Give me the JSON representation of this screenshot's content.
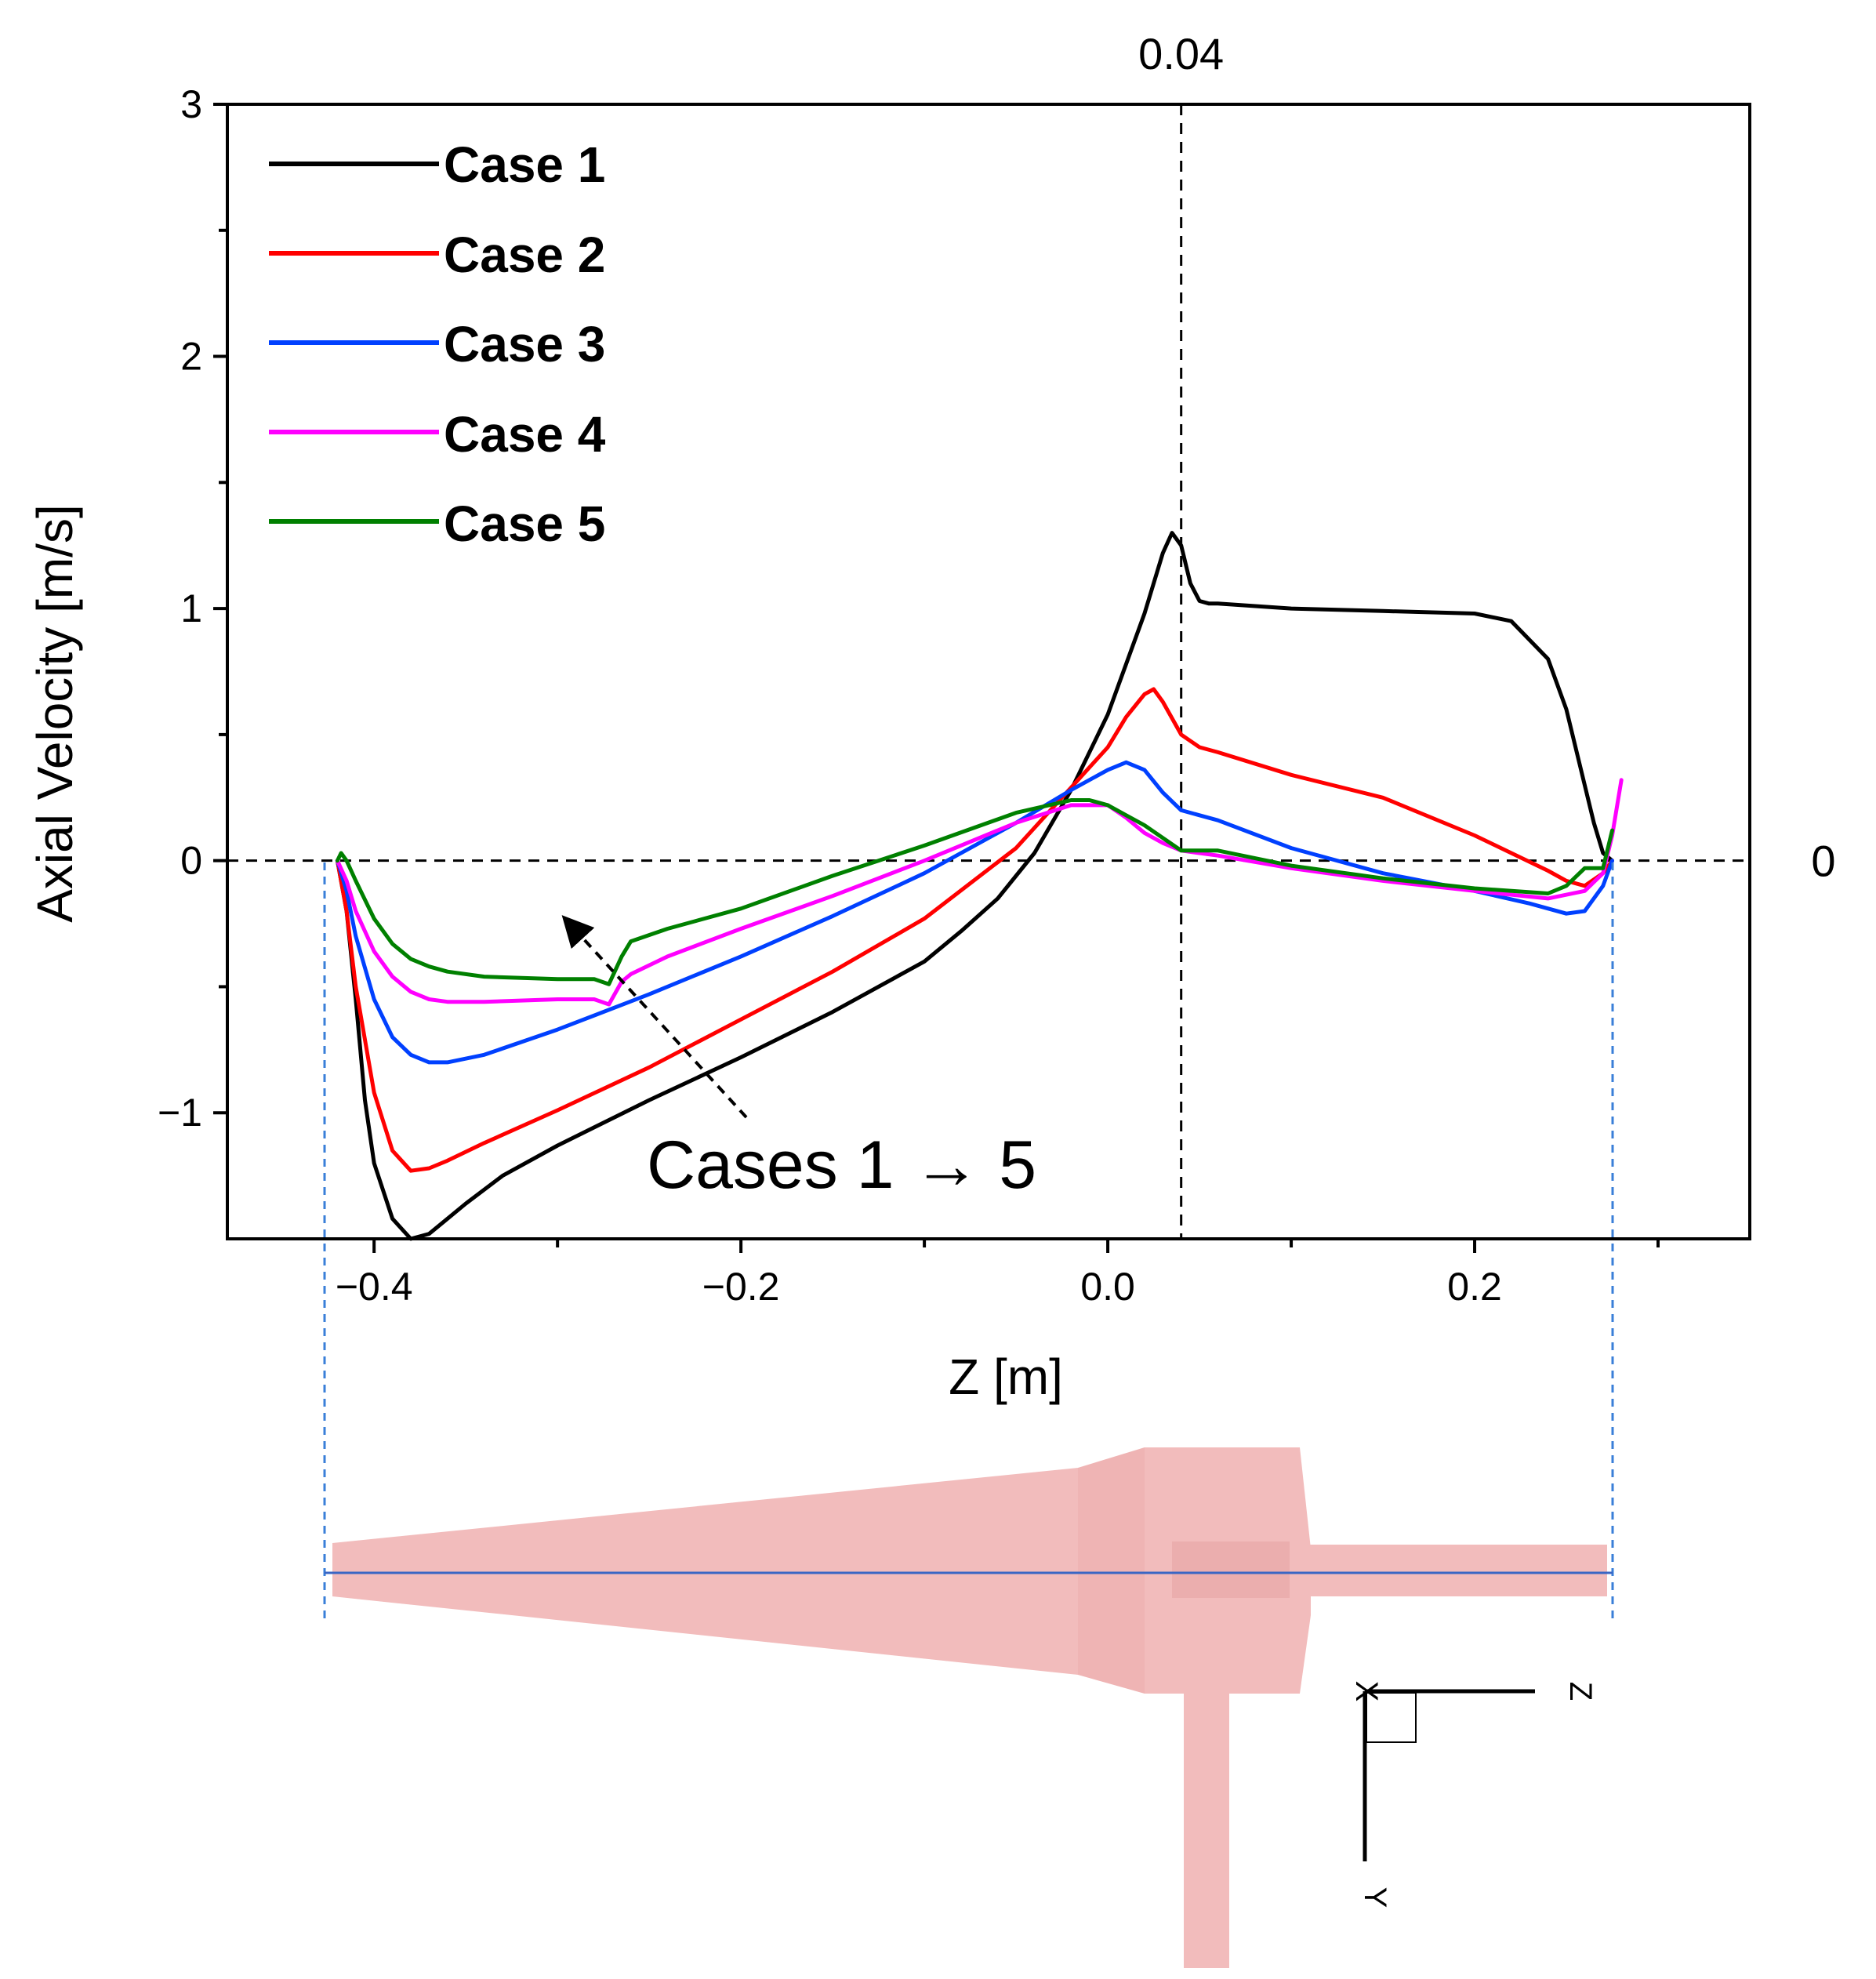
{
  "chart_data": {
    "type": "line",
    "xlabel": "Z [m]",
    "ylabel": "Axial Velocity [m/s]",
    "xlim": [
      -0.48,
      0.35
    ],
    "ylim": [
      -1.5,
      3
    ],
    "x_ticks": [
      -0.4,
      -0.2,
      0.0,
      0.2
    ],
    "x_tick_labels": [
      "−0.4",
      "−0.2",
      "0.0",
      "0.2"
    ],
    "y_ticks": [
      -1,
      0,
      1,
      2,
      3
    ],
    "y_tick_labels": [
      "−1",
      "0",
      "1",
      "2",
      "3"
    ],
    "reference_lines": {
      "vertical_x": 0.04,
      "vertical_label": "0.04",
      "horizontal_y": 0,
      "horizontal_label": "0"
    },
    "legend_position": "top-left",
    "annotation": "Cases 1 → 5",
    "series": [
      {
        "name": "Case 1",
        "color": "#000000",
        "x": [
          -0.42,
          -0.415,
          -0.41,
          -0.405,
          -0.4,
          -0.39,
          -0.38,
          -0.37,
          -0.36,
          -0.35,
          -0.33,
          -0.3,
          -0.25,
          -0.2,
          -0.15,
          -0.1,
          -0.08,
          -0.06,
          -0.04,
          -0.02,
          0.0,
          0.02,
          0.03,
          0.035,
          0.04,
          0.045,
          0.05,
          0.055,
          0.06,
          0.1,
          0.15,
          0.2,
          0.22,
          0.24,
          0.25,
          0.26,
          0.265,
          0.27,
          0.275
        ],
        "y": [
          0.0,
          -0.2,
          -0.55,
          -0.95,
          -1.2,
          -1.42,
          -1.5,
          -1.48,
          -1.42,
          -1.36,
          -1.25,
          -1.13,
          -0.95,
          -0.78,
          -0.6,
          -0.4,
          -0.28,
          -0.15,
          0.03,
          0.28,
          0.58,
          0.98,
          1.22,
          1.3,
          1.25,
          1.1,
          1.03,
          1.02,
          1.02,
          1.0,
          0.99,
          0.98,
          0.95,
          0.8,
          0.6,
          0.3,
          0.15,
          0.03,
          0.0
        ]
      },
      {
        "name": "Case 2",
        "color": "#ff0000",
        "x": [
          -0.42,
          -0.415,
          -0.41,
          -0.4,
          -0.39,
          -0.38,
          -0.37,
          -0.36,
          -0.34,
          -0.3,
          -0.25,
          -0.2,
          -0.15,
          -0.1,
          -0.05,
          0.0,
          0.01,
          0.02,
          0.025,
          0.03,
          0.04,
          0.05,
          0.06,
          0.1,
          0.15,
          0.2,
          0.22,
          0.24,
          0.25,
          0.26,
          0.27,
          0.275
        ],
        "y": [
          0.0,
          -0.2,
          -0.5,
          -0.92,
          -1.15,
          -1.23,
          -1.22,
          -1.19,
          -1.12,
          -0.99,
          -0.82,
          -0.63,
          -0.44,
          -0.23,
          0.05,
          0.45,
          0.57,
          0.66,
          0.68,
          0.63,
          0.5,
          0.45,
          0.43,
          0.34,
          0.25,
          0.1,
          0.03,
          -0.04,
          -0.08,
          -0.1,
          -0.05,
          0.0
        ]
      },
      {
        "name": "Case 3",
        "color": "#0040ff",
        "x": [
          -0.42,
          -0.415,
          -0.41,
          -0.4,
          -0.39,
          -0.38,
          -0.37,
          -0.36,
          -0.34,
          -0.3,
          -0.25,
          -0.2,
          -0.15,
          -0.1,
          -0.05,
          -0.02,
          0.0,
          0.01,
          0.02,
          0.03,
          0.04,
          0.05,
          0.06,
          0.1,
          0.15,
          0.2,
          0.23,
          0.25,
          0.26,
          0.27,
          0.275
        ],
        "y": [
          0.0,
          -0.12,
          -0.3,
          -0.55,
          -0.7,
          -0.77,
          -0.8,
          -0.8,
          -0.77,
          -0.67,
          -0.53,
          -0.38,
          -0.22,
          -0.05,
          0.15,
          0.28,
          0.36,
          0.39,
          0.36,
          0.27,
          0.2,
          0.18,
          0.16,
          0.05,
          -0.05,
          -0.12,
          -0.17,
          -0.21,
          -0.2,
          -0.1,
          0.0
        ]
      },
      {
        "name": "Case 4",
        "color": "#ff00ff",
        "x": [
          -0.42,
          -0.415,
          -0.41,
          -0.4,
          -0.39,
          -0.38,
          -0.37,
          -0.36,
          -0.34,
          -0.3,
          -0.28,
          -0.272,
          -0.265,
          -0.26,
          -0.24,
          -0.2,
          -0.15,
          -0.1,
          -0.05,
          -0.02,
          0.0,
          0.01,
          0.02,
          0.03,
          0.04,
          0.05,
          0.06,
          0.1,
          0.15,
          0.2,
          0.24,
          0.26,
          0.27,
          0.275,
          0.28
        ],
        "y": [
          0.0,
          -0.08,
          -0.2,
          -0.36,
          -0.46,
          -0.52,
          -0.55,
          -0.56,
          -0.56,
          -0.55,
          -0.55,
          -0.57,
          -0.48,
          -0.45,
          -0.38,
          -0.27,
          -0.14,
          0.0,
          0.15,
          0.22,
          0.22,
          0.17,
          0.11,
          0.07,
          0.04,
          0.03,
          0.02,
          -0.03,
          -0.08,
          -0.12,
          -0.15,
          -0.12,
          -0.05,
          0.1,
          0.32
        ]
      },
      {
        "name": "Case 5",
        "color": "#008000",
        "x": [
          -0.42,
          -0.418,
          -0.415,
          -0.41,
          -0.4,
          -0.39,
          -0.38,
          -0.37,
          -0.36,
          -0.34,
          -0.3,
          -0.28,
          -0.272,
          -0.265,
          -0.26,
          -0.24,
          -0.2,
          -0.15,
          -0.1,
          -0.05,
          -0.02,
          -0.01,
          0.0,
          0.01,
          0.02,
          0.03,
          0.04,
          0.05,
          0.06,
          0.1,
          0.15,
          0.2,
          0.24,
          0.25,
          0.26,
          0.27,
          0.275
        ],
        "y": [
          0.0,
          0.03,
          0.0,
          -0.08,
          -0.23,
          -0.33,
          -0.39,
          -0.42,
          -0.44,
          -0.46,
          -0.47,
          -0.47,
          -0.49,
          -0.38,
          -0.32,
          -0.27,
          -0.19,
          -0.06,
          0.06,
          0.19,
          0.24,
          0.24,
          0.22,
          0.18,
          0.14,
          0.09,
          0.04,
          0.04,
          0.04,
          -0.02,
          -0.07,
          -0.11,
          -0.13,
          -0.1,
          -0.03,
          -0.03,
          0.12
        ]
      }
    ]
  },
  "axes_labels": {
    "x_axis_title": "Z [m]",
    "y_axis_title": "Axial Velocity [m/s]"
  },
  "coordinate_system": {
    "axis_1": "Z",
    "axis_2": "Y",
    "axis_3": "X"
  },
  "colors": {
    "geometry_fill": "#f2bcbc",
    "geometry_shade": "#e8a8a8",
    "centerline": "#3a66c4",
    "guide_lines": "#3a7fd8"
  }
}
